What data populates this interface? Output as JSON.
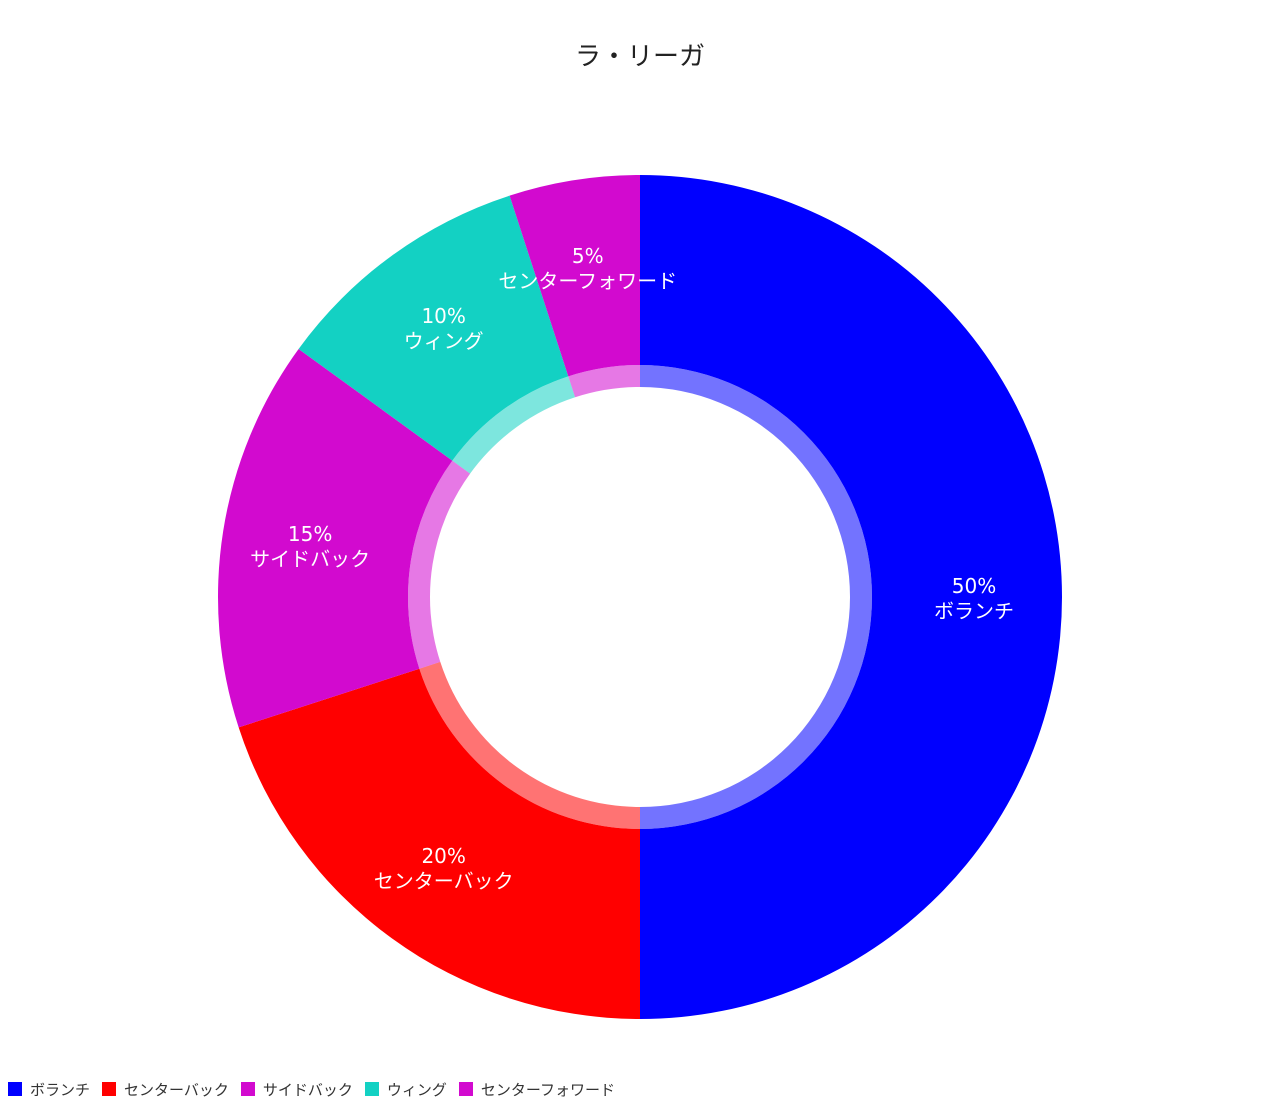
{
  "chart_data": {
    "type": "pie",
    "variant": "donut",
    "title": "ラ・リーガ",
    "series": [
      {
        "label": "ボランチ",
        "value": 50,
        "display": "50%",
        "color": "#0000ff"
      },
      {
        "label": "センターバック",
        "value": 20,
        "display": "20%",
        "color": "#ff0000"
      },
      {
        "label": "サイドバック",
        "value": 15,
        "display": "15%",
        "color": "#d20acf"
      },
      {
        "label": "ウィング",
        "value": 10,
        "display": "10%",
        "color": "#13d1c3"
      },
      {
        "label": "センターフォワード",
        "value": 5,
        "display": "5%",
        "color": "#d20acf"
      }
    ],
    "legend_position": "bottom-left"
  }
}
